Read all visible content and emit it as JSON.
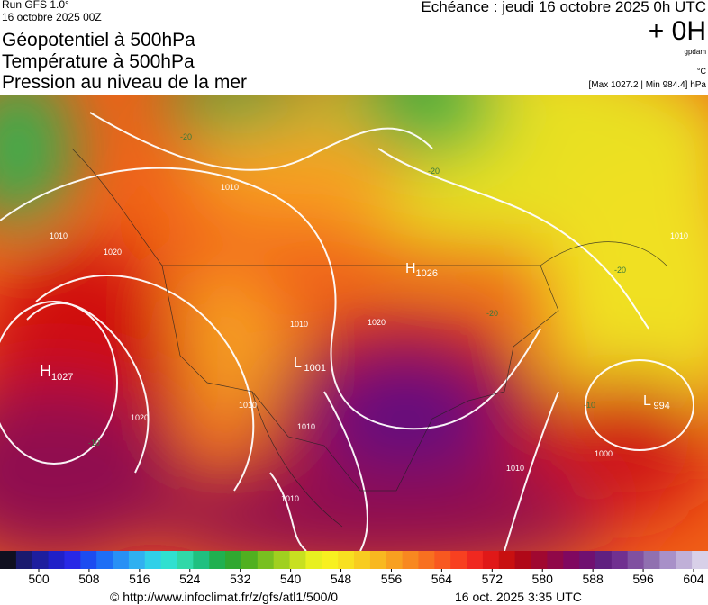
{
  "header": {
    "run": "Run GFS 1.0°",
    "date": "16 octobre 2025 00Z",
    "titles": [
      "Géopotentiel à 500hPa",
      "Température à 500hPa",
      "Pression au niveau de la mer"
    ],
    "echeance": "Echéance : jeudi 16 octobre 2025 0h UTC",
    "lead": "+ 0H",
    "unit_gpdam": "gpdam",
    "unit_c": "°C",
    "max_min": "[Max 1027.2 | Min 984.4] hPa"
  },
  "map_labels": {
    "pressure_centers": [
      {
        "letter": "H",
        "value": "1026"
      },
      {
        "letter": "H",
        "value": "1027"
      },
      {
        "letter": "L",
        "value": "1001"
      },
      {
        "letter": "L",
        "value": "994"
      }
    ],
    "isobar_labels": [
      "1010",
      "1010",
      "1020",
      "1020",
      "1010",
      "1010",
      "1020",
      "1010",
      "1010",
      "1010",
      "1000",
      "1010"
    ],
    "temperature_labels": [
      "-20",
      "-20",
      "-20",
      "-20",
      "-10",
      "-10"
    ]
  },
  "colorbar": {
    "ticks": [
      500,
      508,
      516,
      524,
      532,
      540,
      548,
      556,
      564,
      572,
      580,
      588,
      596,
      604
    ],
    "colors": [
      "#101020",
      "#1a1a6e",
      "#1e1e9e",
      "#2020c8",
      "#2828e6",
      "#1c4cf0",
      "#1e6ef5",
      "#2890f5",
      "#30b0f0",
      "#30d0e8",
      "#30e0d0",
      "#30d8a8",
      "#20c080",
      "#20b050",
      "#30a830",
      "#50b020",
      "#78c020",
      "#a0d020",
      "#c8e020",
      "#e8f020",
      "#f8f020",
      "#f8e020",
      "#f8cc20",
      "#f8b820",
      "#f8a020",
      "#f88820",
      "#f87020",
      "#f85820",
      "#f84020",
      "#f02820",
      "#e01818",
      "#c81010",
      "#b00818",
      "#a00830",
      "#900848",
      "#800860",
      "#701070",
      "#602080",
      "#703090",
      "#8050a0",
      "#9070b0",
      "#a890c8",
      "#c0b0d8",
      "#d8d0e8"
    ]
  },
  "footer": {
    "source": "© http://www.infoclimat.fr/z/gfs/atl1/500/0",
    "generated": "16 oct. 2025  3:35 UTC"
  }
}
